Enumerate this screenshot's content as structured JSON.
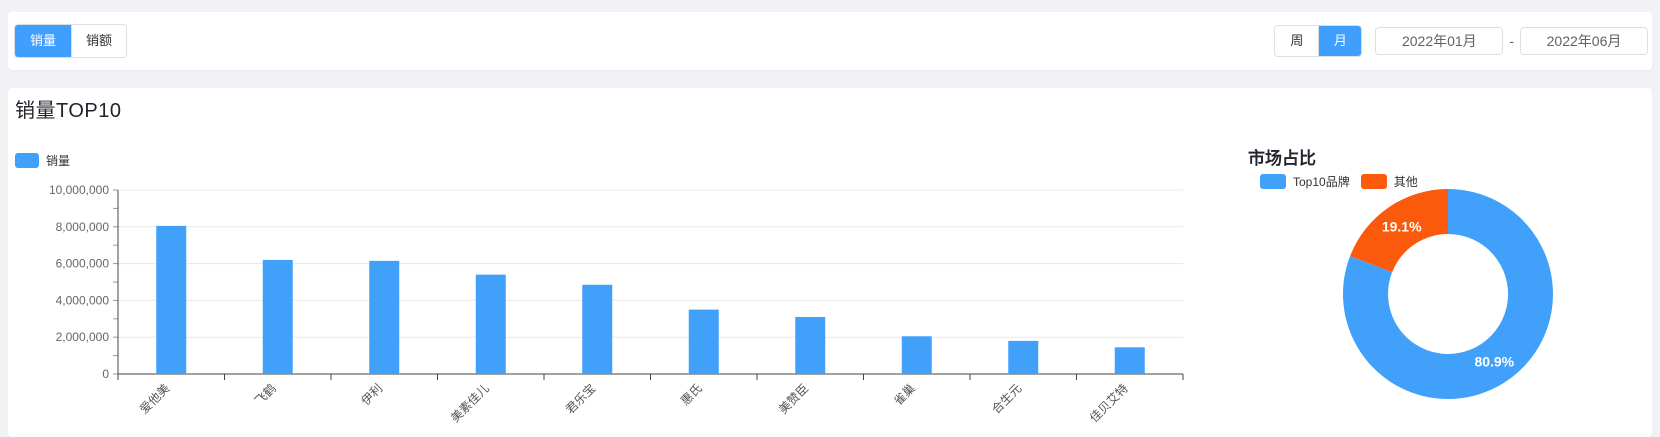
{
  "topbar": {
    "metric_toggle": {
      "options": [
        "销量",
        "销额"
      ],
      "active": "销量"
    },
    "period_toggle": {
      "options": [
        "周",
        "月"
      ],
      "active": "月"
    },
    "date_start": "2022年01月",
    "date_separator": "-",
    "date_end": "2022年06月"
  },
  "main": {
    "title": "销量TOP10",
    "bar_legend_label": "销量",
    "pie_title": "市场占比",
    "pie_legend": [
      "Top10品牌",
      "其他"
    ]
  },
  "colors": {
    "primary": "#409eff",
    "chart_blue": "#41a1fa",
    "chart_orange": "#fb5a0c",
    "axis": "#454545",
    "grid": "#e8e8e8",
    "tick": "#999999",
    "y_label": "#666666",
    "x_label": "#555555"
  },
  "chart_data": [
    {
      "type": "bar",
      "title": "销量TOP10",
      "legend": [
        "销量"
      ],
      "categories": [
        "爱他美",
        "飞鹤",
        "伊利",
        "美素佳儿",
        "君乐宝",
        "惠氏",
        "美赞臣",
        "雀巢",
        "合生元",
        "佳贝艾特"
      ],
      "values": [
        8050000,
        6200000,
        6150000,
        5400000,
        4850000,
        3500000,
        3100000,
        2050000,
        1800000,
        1450000
      ],
      "xlabel": "",
      "ylabel": "",
      "ylim": [
        0,
        10000000
      ],
      "ytick_interval": 2000000,
      "ytick_minor_interval": 1000000,
      "grid": true,
      "legend_position": "top-left",
      "x_label_rotation": -45
    },
    {
      "type": "pie",
      "donut": true,
      "title": "市场占比",
      "labels": [
        "Top10品牌",
        "其他"
      ],
      "values": [
        80.9,
        19.1
      ],
      "value_labels": [
        "80.9%",
        "19.1%"
      ],
      "slice_colors": [
        "#41a1fa",
        "#fb5a0c"
      ],
      "legend_position": "top-left",
      "start_angle_deg": 0,
      "direction": "clockwise"
    }
  ]
}
